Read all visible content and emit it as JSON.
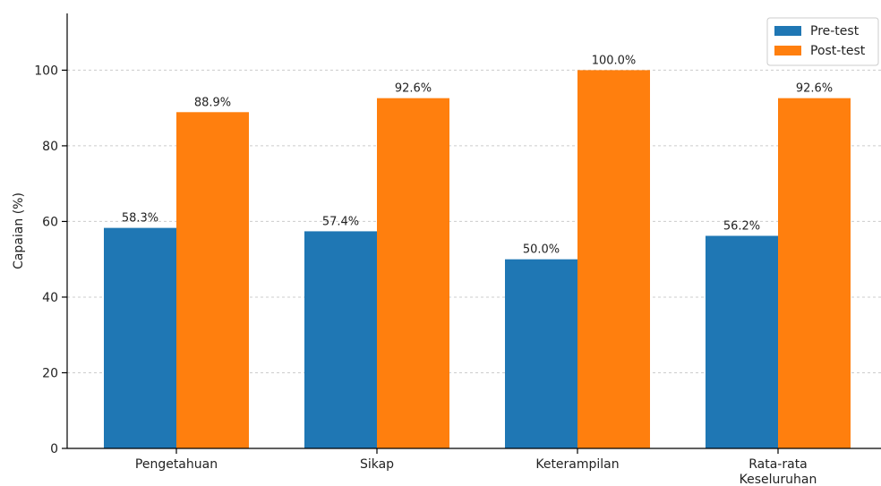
{
  "chart_data": {
    "type": "bar",
    "title": "",
    "xlabel": "",
    "ylabel": "Capaian (%)",
    "categories": [
      [
        "Pengetahuan"
      ],
      [
        "Sikap"
      ],
      [
        "Keterampilan"
      ],
      [
        "Rata-rata",
        "Keseluruhan"
      ]
    ],
    "series": [
      {
        "name": "Pre-test",
        "values": [
          58.3,
          57.4,
          50.0,
          56.2
        ],
        "labels": [
          "58.3%",
          "57.4%",
          "50.0%",
          "56.2%"
        ],
        "color": "#1f77b4"
      },
      {
        "name": "Post-test",
        "values": [
          88.9,
          92.6,
          100.0,
          92.6
        ],
        "labels": [
          "88.9%",
          "92.6%",
          "100.0%",
          "92.6%"
        ],
        "color": "#ff7f0e"
      }
    ],
    "yticks": [
      0,
      20,
      40,
      60,
      80,
      100
    ],
    "ylim": [
      0,
      115
    ],
    "grid": "horizontal dashed",
    "legend_position": "top-right"
  }
}
